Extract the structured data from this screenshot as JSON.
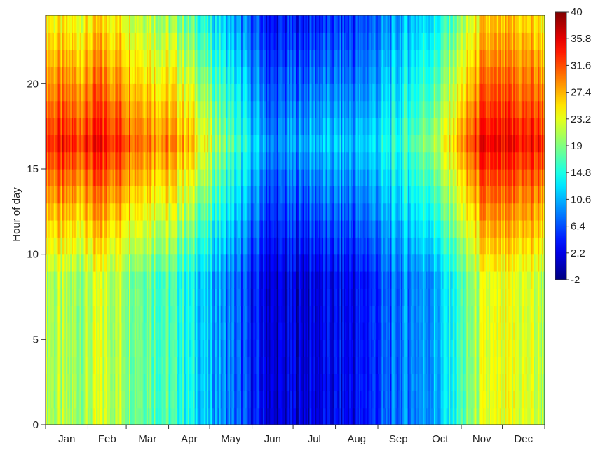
{
  "chart_data": {
    "type": "heatmap",
    "title": "",
    "xlabel": "",
    "ylabel": "Hour of day",
    "x_categories": [
      "Jan",
      "Feb",
      "Mar",
      "Apr",
      "May",
      "Jun",
      "Jul",
      "Aug",
      "Sep",
      "Oct",
      "Nov",
      "Dec"
    ],
    "y_ticks": [
      0,
      5,
      10,
      15,
      20
    ],
    "ylim": [
      0,
      24
    ],
    "y_bins": 24,
    "colorbar": {
      "min": -2,
      "max": 40,
      "ticks": [
        40,
        35.8,
        31.6,
        27.4,
        23.2,
        19,
        14.8,
        10.6,
        6.4,
        2.2,
        -2
      ],
      "colormap": "jet"
    },
    "day_profile": [
      20,
      22,
      19,
      14,
      8,
      1,
      2,
      3,
      8,
      11,
      22,
      23
    ],
    "afternoon_extra": [
      13,
      12,
      12,
      13,
      9,
      7,
      9,
      8,
      7,
      11,
      12,
      11
    ],
    "series": [
      {
        "hour": 0,
        "values": [
          20,
          22,
          19,
          14,
          8,
          1,
          2,
          3,
          8,
          11,
          22,
          23
        ]
      },
      {
        "hour": 8,
        "values": [
          20,
          22,
          19,
          14,
          8,
          1,
          2,
          3,
          8,
          11,
          22,
          23
        ]
      },
      {
        "hour": 11,
        "values": [
          27,
          28,
          25,
          21,
          13,
          6,
          7,
          7,
          12,
          17,
          28,
          28
        ]
      },
      {
        "hour": 16,
        "values": [
          33,
          34,
          31,
          27,
          17,
          8,
          11,
          11,
          15,
          22,
          34,
          34
        ]
      },
      {
        "hour": 20,
        "values": [
          30,
          31,
          28,
          24,
          15,
          7,
          9,
          9,
          13,
          19,
          31,
          31
        ]
      },
      {
        "hour": 23,
        "values": [
          24,
          25,
          22,
          18,
          11,
          4,
          5,
          5,
          10,
          14,
          25,
          25
        ]
      }
    ],
    "grid": false,
    "legend": "colorbar-right"
  }
}
